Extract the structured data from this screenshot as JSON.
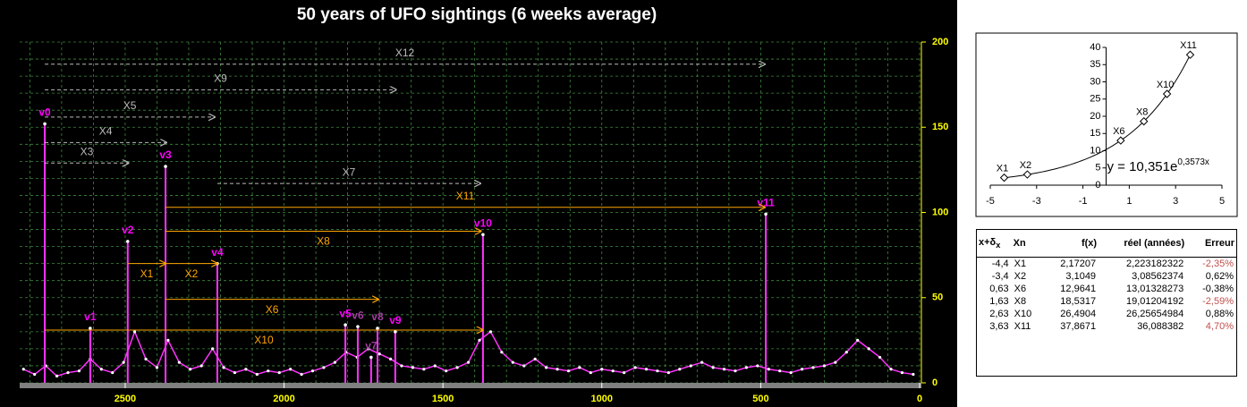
{
  "chart_data": [
    {
      "type": "line",
      "title": "50 years of UFO sightings (6 weeks average)",
      "xlim": [
        2832,
        0
      ],
      "xticks": [
        2500,
        2000,
        1500,
        1000,
        500,
        0
      ],
      "ylim": [
        0,
        200
      ],
      "yticks": [
        0,
        50,
        100,
        150,
        200
      ],
      "grid": true,
      "x_grid_step": 100,
      "y_grid_step": 10,
      "series": [
        {
          "name": "sightings",
          "color": "#ff33ff",
          "x": [
            2820,
            2785,
            2750,
            2715,
            2680,
            2645,
            2610,
            2575,
            2540,
            2505,
            2470,
            2435,
            2400,
            2365,
            2330,
            2295,
            2260,
            2225,
            2190,
            2155,
            2120,
            2085,
            2050,
            2015,
            1980,
            1945,
            1910,
            1875,
            1840,
            1805,
            1770,
            1735,
            1700,
            1665,
            1630,
            1595,
            1560,
            1525,
            1490,
            1455,
            1420,
            1385,
            1350,
            1315,
            1280,
            1245,
            1210,
            1175,
            1140,
            1105,
            1070,
            1035,
            1000,
            965,
            930,
            895,
            860,
            825,
            790,
            755,
            720,
            685,
            650,
            615,
            580,
            545,
            510,
            475,
            440,
            405,
            370,
            335,
            300,
            265,
            230,
            195,
            160,
            125,
            90,
            55,
            20
          ],
          "values": [
            8,
            5,
            10,
            4,
            6,
            7,
            14,
            8,
            6,
            12,
            30,
            14,
            9,
            25,
            12,
            8,
            10,
            20,
            9,
            6,
            8,
            5,
            7,
            6,
            8,
            5,
            7,
            9,
            12,
            18,
            15,
            20,
            17,
            14,
            10,
            9,
            8,
            10,
            7,
            9,
            12,
            25,
            30,
            18,
            12,
            10,
            14,
            9,
            8,
            7,
            9,
            6,
            8,
            7,
            6,
            9,
            8,
            7,
            6,
            8,
            10,
            12,
            9,
            8,
            7,
            9,
            10,
            8,
            7,
            6,
            8,
            9,
            10,
            12,
            18,
            25,
            20,
            15,
            8,
            6,
            5
          ]
        }
      ],
      "peaks": {
        "labels": [
          "v0",
          "v1",
          "v2",
          "v3",
          "v4",
          "v5",
          "v6",
          "v7",
          "v8",
          "v9",
          "v10",
          "v11"
        ],
        "colors": [
          "#ff00ff",
          "#ff00ff",
          "#ff00ff",
          "#ff00ff",
          "#ff00ff",
          "#ff00ff",
          "#a03ca0",
          "#a03ca0",
          "#a03ca0",
          "#ff00ff",
          "#ff00ff",
          "#ff00ff"
        ],
        "x": [
          2753,
          2610,
          2492,
          2373,
          2210,
          1807,
          1768,
          1726,
          1706,
          1650,
          1374,
          484
        ],
        "values": [
          152,
          32,
          83,
          127,
          70,
          34,
          33,
          15,
          32,
          30,
          87,
          99
        ]
      },
      "annotations": [
        {
          "label": "X12",
          "x_start": 2753,
          "x_end": 487,
          "y": 187,
          "color": "#bbbbbb",
          "label_pos": "above"
        },
        {
          "label": "X9",
          "x_start": 2753,
          "x_end": 1647,
          "y": 172,
          "color": "#bbbbbb",
          "label_pos": "above"
        },
        {
          "label": "X5",
          "x_start": 2753,
          "x_end": 2218,
          "y": 156,
          "color": "#bbbbbb",
          "label_pos": "above"
        },
        {
          "label": "X4",
          "x_start": 2753,
          "x_end": 2370,
          "y": 141,
          "color": "#bbbbbb",
          "label_pos": "above"
        },
        {
          "label": "X3",
          "x_start": 2753,
          "x_end": 2489,
          "y": 129,
          "color": "#bbbbbb",
          "label_pos": "above"
        },
        {
          "label": "X7",
          "x_start": 2210,
          "x_end": 1382,
          "y": 117,
          "color": "#bbbbbb",
          "label_pos": "above"
        },
        {
          "label": "X11",
          "x_start": 2373,
          "x_end": 487,
          "y": 103,
          "color": "#ffa500",
          "label_pos": "above"
        },
        {
          "label": "X8",
          "x_start": 2373,
          "x_end": 1380,
          "y": 89,
          "color": "#ffa500",
          "label_pos": "below"
        },
        {
          "label": "X1",
          "x_start": 2492,
          "x_end": 2373,
          "y": 70,
          "color": "#ffa500",
          "label_pos": "below"
        },
        {
          "label": "X2",
          "x_start": 2373,
          "x_end": 2210,
          "y": 70,
          "color": "#ffa500",
          "label_pos": "below"
        },
        {
          "label": "X6",
          "x_start": 2373,
          "x_end": 1703,
          "y": 49,
          "color": "#ffa500",
          "label_pos": "below"
        },
        {
          "label": "X10",
          "x_start": 2753,
          "x_end": 1374,
          "y": 31,
          "color": "#ffa500",
          "label_pos": "below"
        }
      ]
    },
    {
      "type": "scatter",
      "xlim": [
        -5,
        5
      ],
      "xticks": [
        -5,
        -3,
        -1,
        1,
        3,
        5
      ],
      "ylim": [
        0,
        40
      ],
      "yticks": [
        0,
        5,
        10,
        15,
        20,
        25,
        30,
        35,
        40
      ],
      "x": [
        -4.4,
        -3.4,
        0.63,
        1.63,
        2.63,
        3.63
      ],
      "values": [
        2.17207,
        3.1049,
        12.9641,
        18.5317,
        26.4904,
        37.8671
      ],
      "point_labels": [
        "X1",
        "X2",
        "X6",
        "X8",
        "X10",
        "X11"
      ],
      "fit": {
        "a": 10.351,
        "b": 0.3573,
        "label": "y = 10,351e",
        "exponent_label": "0,3573x"
      }
    }
  ],
  "table": {
    "header": [
      "x+δ",
      "Xn",
      "f(x)",
      "réel (années)",
      "Erreur"
    ],
    "header_sub": "x",
    "rows": [
      [
        "-4,4",
        "X1",
        "2,17207",
        "2,223182322",
        "-2,35%"
      ],
      [
        "-3,4",
        "X2",
        "3,1049",
        "3,08562374",
        "0,62%"
      ],
      [
        "0,63",
        "X6",
        "12,9641",
        "13,01328273",
        "-0,38%"
      ],
      [
        "1,63",
        "X8",
        "18,5317",
        "19,01204192",
        "-2,59%"
      ],
      [
        "2,63",
        "X10",
        "26,4904",
        "26,25654984",
        "0,88%"
      ],
      [
        "3,63",
        "X11",
        "37,8671",
        "36,088382",
        "4,70%"
      ]
    ],
    "highlight_rows": [
      0,
      3,
      5
    ],
    "highlight_color": "#c0504d"
  }
}
